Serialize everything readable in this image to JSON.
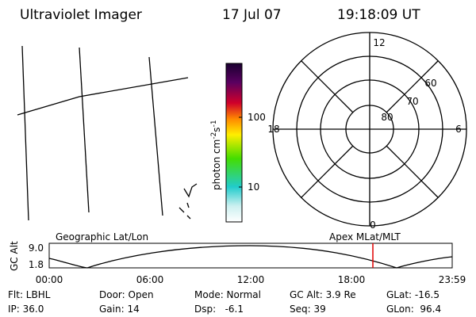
{
  "header": {
    "title": "Ultraviolet Imager",
    "date": "17 Jul 07",
    "time": "19:18:09 UT"
  },
  "colorbar": {
    "label": "photon cm",
    "exp1": "-2",
    "unit2": "s",
    "exp2": "-1",
    "ticks": [
      "100",
      "10"
    ]
  },
  "polar": {
    "labels": [
      "12",
      "18",
      "6",
      "0",
      "60",
      "70",
      "80"
    ]
  },
  "altitude_plot": {
    "ylabel": "GC Alt",
    "yticks": [
      "9.0",
      "1.8"
    ],
    "xticks": [
      "00:00",
      "06:00",
      "12:00",
      "18:00",
      "23:59"
    ],
    "left_label": "Geographic Lat/Lon",
    "right_label": "Apex MLat/MLT"
  },
  "info": [
    [
      "Flt: LBHL",
      "Door: Open",
      "Mode: Normal",
      "GC Alt: 3.9 Re",
      "GLat: -16.5"
    ],
    [
      "IP: 36.0",
      "Gain: 14",
      "Dsp:   -6.1",
      "Seq: 39",
      "GLon:  96.4"
    ]
  ]
}
